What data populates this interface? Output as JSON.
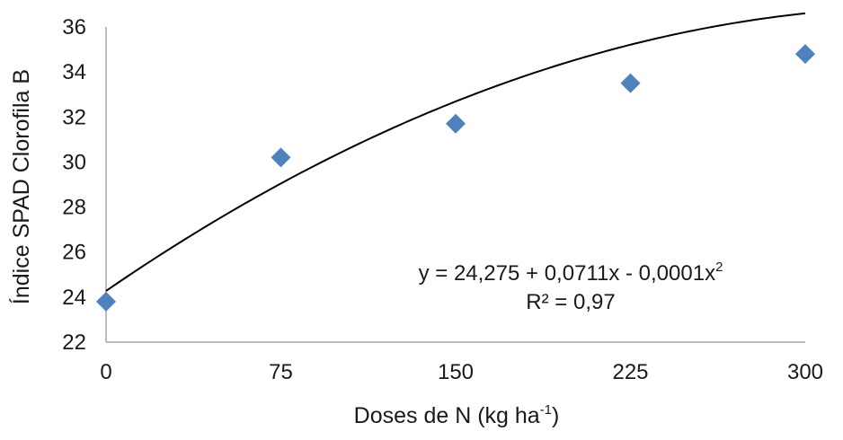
{
  "chart_data": {
    "type": "scatter",
    "xlabel": {
      "main": "Doses de N (kg ha",
      "sup": "-1",
      "tail": ")"
    },
    "ylabel": "Índice SPAD Clorofila B",
    "xlim": [
      0,
      300
    ],
    "ylim": [
      22,
      36
    ],
    "xticks": [
      0,
      75,
      150,
      225,
      300
    ],
    "yticks": [
      22,
      24,
      26,
      28,
      30,
      32,
      34,
      36
    ],
    "grid": false,
    "legend": "none",
    "marker": "diamond",
    "marker_color": "#4f81bd",
    "trendline_color": "#000000",
    "points": [
      {
        "x": 0,
        "y": 23.8
      },
      {
        "x": 75,
        "y": 30.2
      },
      {
        "x": 150,
        "y": 31.7
      },
      {
        "x": 225,
        "y": 33.5
      },
      {
        "x": 300,
        "y": 34.8
      }
    ],
    "trendline": {
      "type": "polynomial",
      "coefficients": [
        24.275,
        0.0711,
        -0.0001
      ]
    },
    "annotations": {
      "equation": {
        "main": "y = 24,275 + 0,0711x - 0,0001x",
        "sup": "2"
      },
      "r2": "R² = 0,97"
    }
  }
}
